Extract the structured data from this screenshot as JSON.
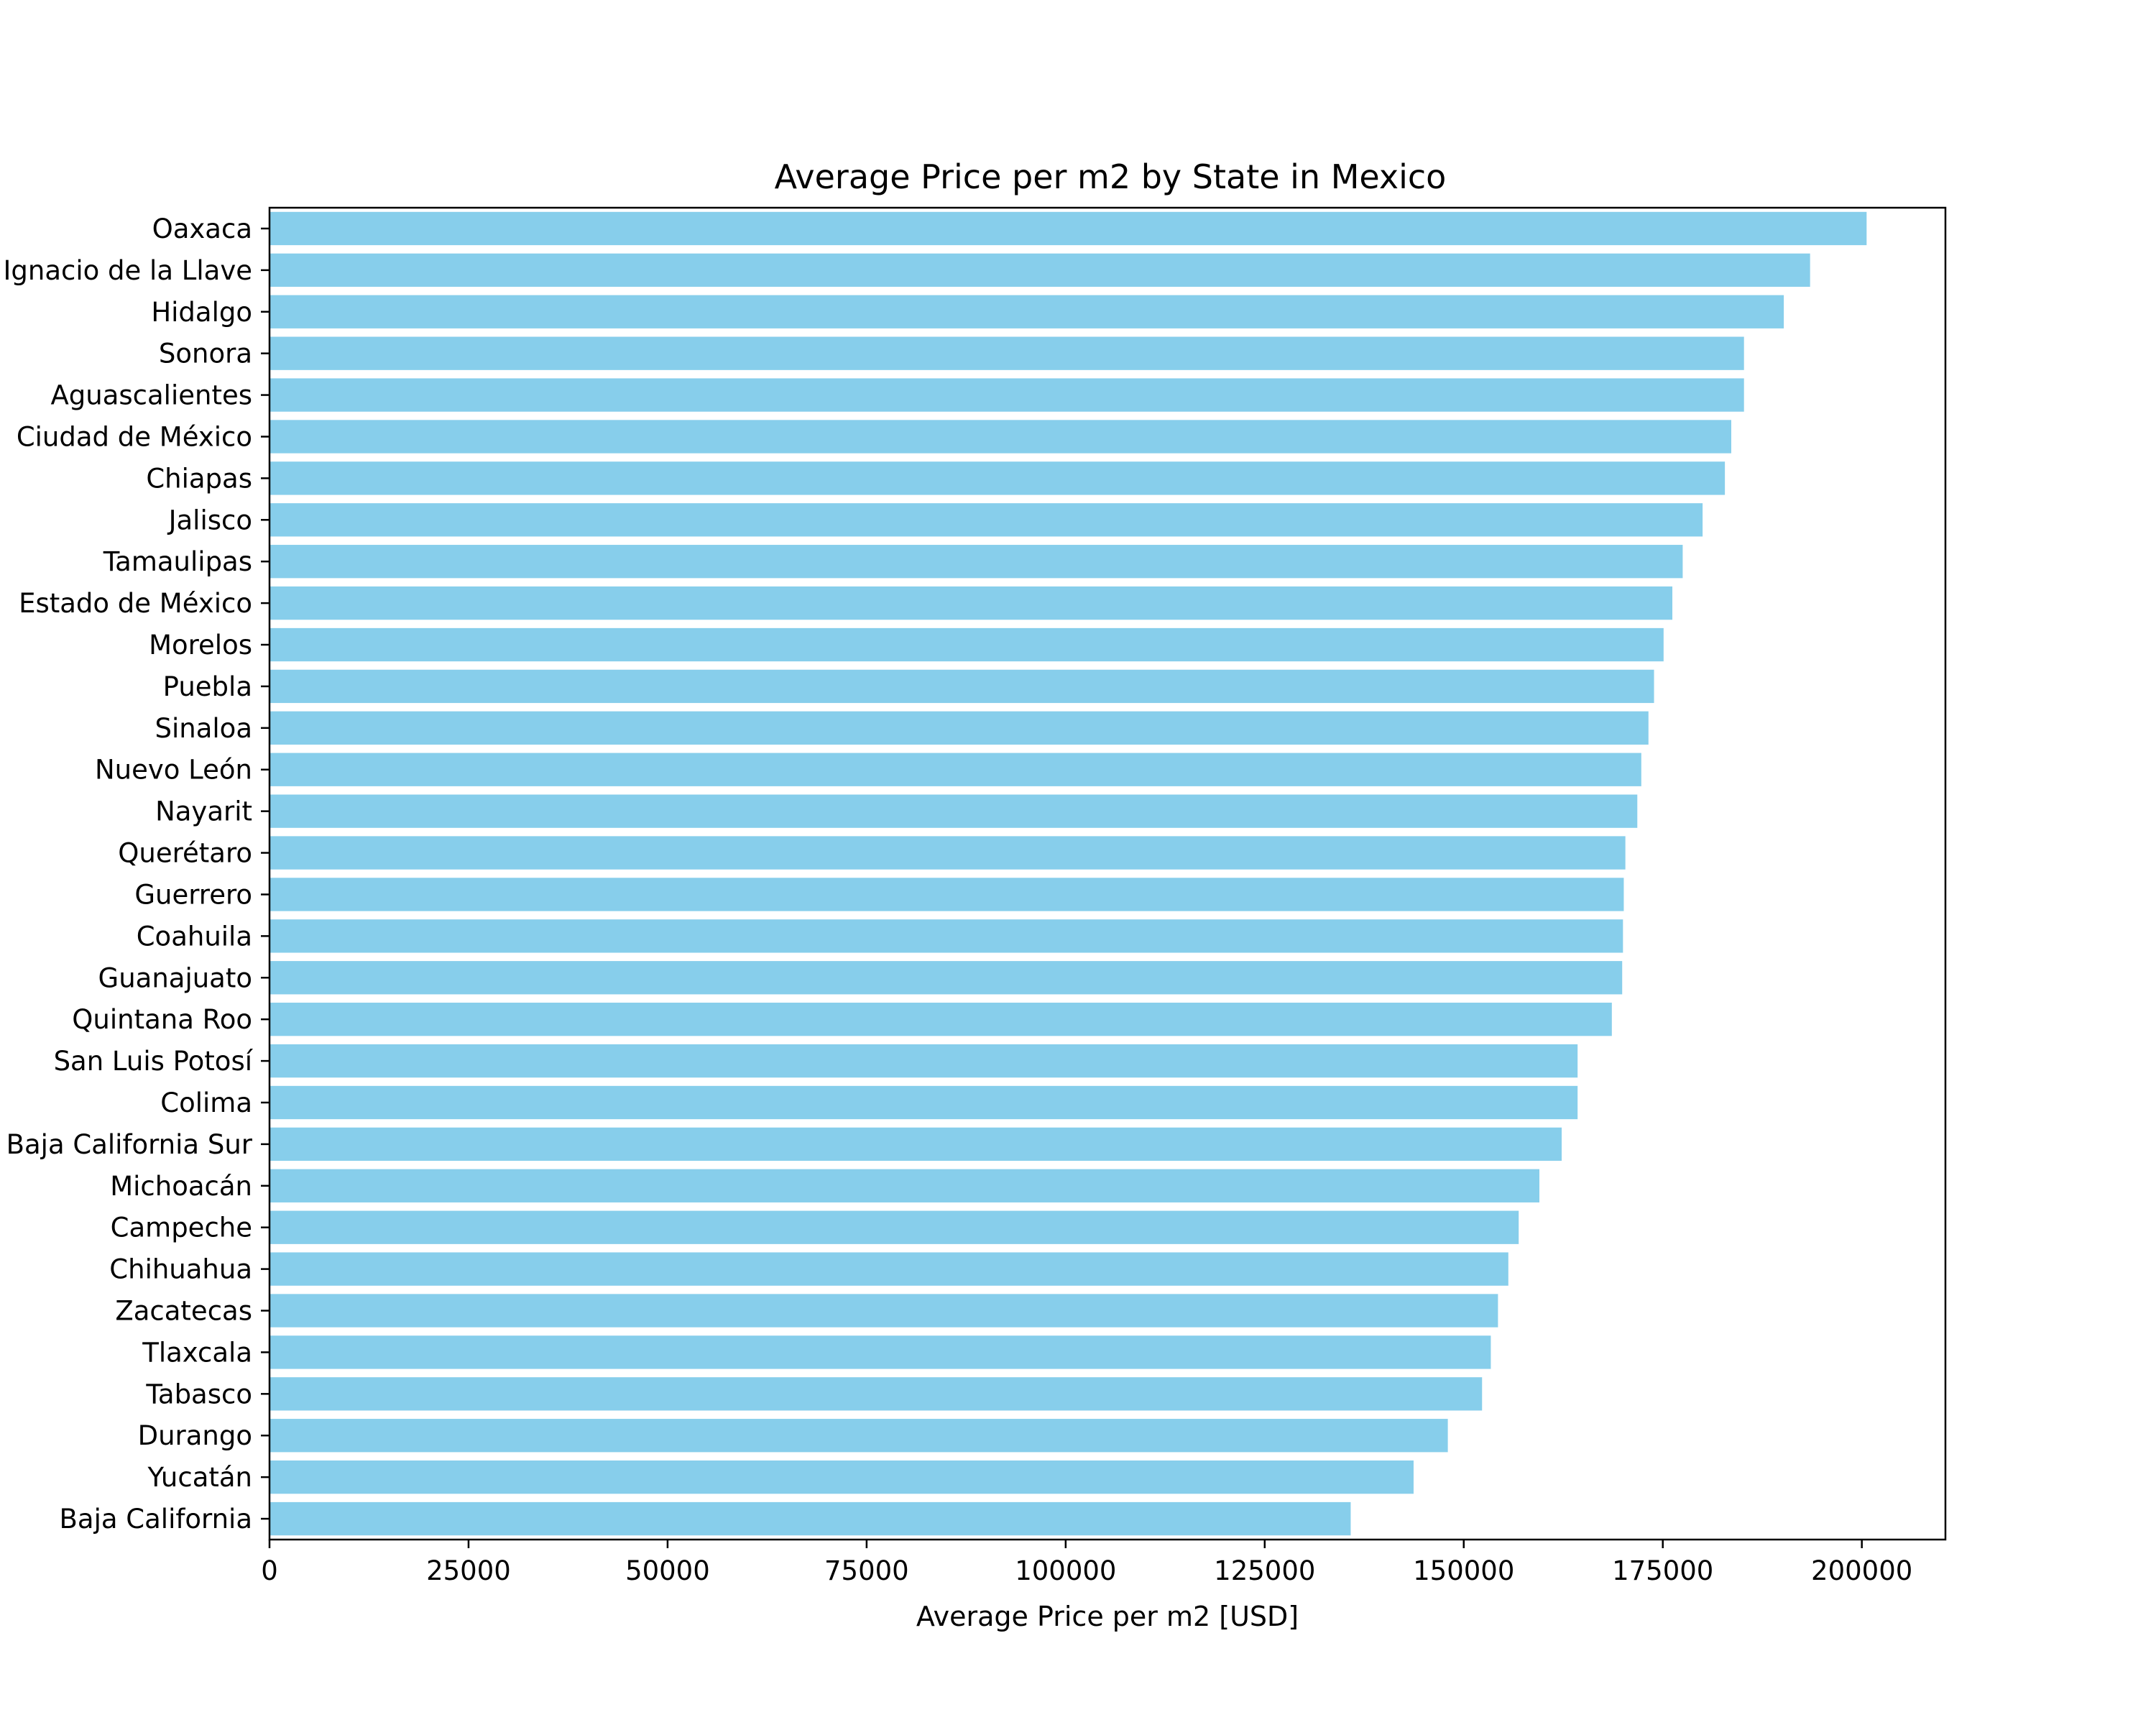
{
  "chart_data": {
    "type": "bar",
    "orientation": "horizontal",
    "title": "Average Price per m2 by State in Mexico",
    "xlabel": "Average Price per m2 [USD]",
    "ylabel": "",
    "xlim": [
      0,
      210500
    ],
    "xticks": [
      0,
      25000,
      50000,
      75000,
      100000,
      125000,
      150000,
      175000,
      200000
    ],
    "xtick_labels": [
      "0",
      "25000",
      "50000",
      "75000",
      "100000",
      "125000",
      "150000",
      "175000",
      "200000"
    ],
    "bar_color": "#87ceeb",
    "grid": false,
    "legend": "none",
    "categories": [
      "Oaxaca",
      "Veracruz de Ignacio de la Llave",
      "Hidalgo",
      "Sonora",
      "Aguascalientes",
      "Ciudad de México",
      "Chiapas",
      "Jalisco",
      "Tamaulipas",
      "Estado de México",
      "Morelos",
      "Puebla",
      "Sinaloa",
      "Nuevo León",
      "Nayarit",
      "Querétaro",
      "Guerrero",
      "Coahuila",
      "Guanajuato",
      "Quintana Roo",
      "San Luis Potosí",
      "Colima",
      "Baja California Sur",
      "Michoacán",
      "Campeche",
      "Chihuahua",
      "Zacatecas",
      "Tlaxcala",
      "Tabasco",
      "Durango",
      "Yucatán",
      "Baja California"
    ],
    "values": [
      200600,
      193500,
      190200,
      185200,
      185200,
      183600,
      182800,
      180000,
      177500,
      176200,
      175100,
      173900,
      173200,
      172300,
      171800,
      170300,
      170100,
      170000,
      169900,
      168600,
      164300,
      164300,
      162300,
      159500,
      156900,
      155600,
      154300,
      153400,
      152300,
      148000,
      143700,
      135800
    ]
  }
}
